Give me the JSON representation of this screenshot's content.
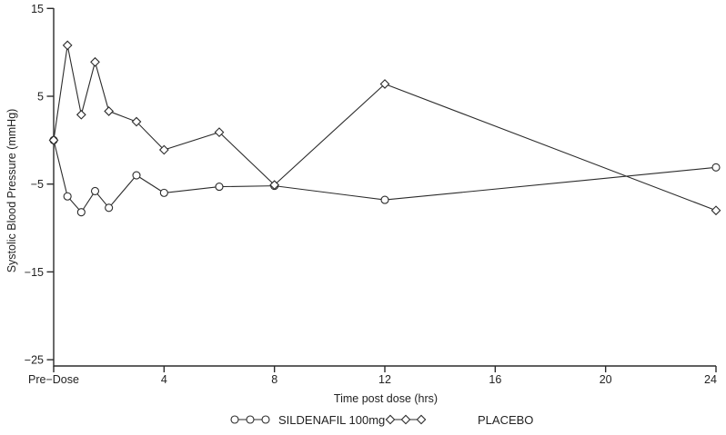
{
  "figure": {
    "background": "#ffffff",
    "line_color": "#2b2b2b",
    "text_color": "#222222"
  },
  "chart_data": {
    "type": "line",
    "title": "",
    "xlabel": "Time post dose (hrs)",
    "ylabel": "Systolic Blood Pressure (mmHg)",
    "xlim": [
      0,
      24
    ],
    "ylim": [
      -25,
      15
    ],
    "grid": false,
    "legend_position": "bottom",
    "x": [
      0,
      0.5,
      1,
      1.5,
      2,
      3,
      4,
      6,
      8,
      12,
      24
    ],
    "x_tick_values": [
      0,
      4,
      8,
      12,
      16,
      20,
      24
    ],
    "x_tick_labels": [
      "Pre−Dose",
      "4",
      "8",
      "12",
      "16",
      "20",
      "24"
    ],
    "y_tick_values": [
      15,
      5,
      -5,
      -15,
      -25
    ],
    "y_tick_labels": [
      "15",
      "5",
      "−5",
      "−15",
      "−25"
    ],
    "series": [
      {
        "name": "SILDENAFIL 100mg",
        "marker": "circle",
        "values": [
          0,
          -6.4,
          -8.2,
          -5.8,
          -7.7,
          -4.0,
          -6.0,
          -5.3,
          -5.2,
          -6.8,
          -3.1
        ]
      },
      {
        "name": "PLACEBO",
        "marker": "diamond",
        "values": [
          0,
          10.8,
          2.9,
          8.9,
          3.3,
          2.1,
          -1.1,
          0.9,
          -5.1,
          6.4,
          -8.0
        ]
      }
    ]
  }
}
